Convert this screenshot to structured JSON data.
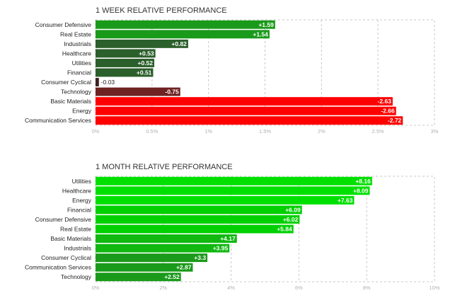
{
  "chart_data": [
    {
      "type": "bar",
      "orientation": "horizontal",
      "title": "1 WEEK RELATIVE PERFORMANCE",
      "categories": [
        "Consumer Defensive",
        "Real Estate",
        "Industrials",
        "Healthcare",
        "Utilities",
        "Financial",
        "Consumer Cyclical",
        "Technology",
        "Basic Materials",
        "Energy",
        "Communication Services"
      ],
      "values": [
        1.59,
        1.54,
        0.82,
        0.53,
        0.52,
        0.51,
        -0.03,
        -0.75,
        -2.63,
        -2.66,
        -2.72
      ],
      "value_labels": [
        "+1.59",
        "+1.54",
        "+0.82",
        "+0.53",
        "+0.52",
        "+0.51",
        "-0.03",
        "-0.75",
        "-2.63",
        "-2.66",
        "-2.72"
      ],
      "colors": [
        "#1a9a1a",
        "#1a9a1a",
        "#2b5f2b",
        "#2b5f2b",
        "#2b5f2b",
        "#2b5f2b",
        "#3a2020",
        "#6e2222",
        "#ff0000",
        "#ff0000",
        "#ff0000"
      ],
      "xlim": [
        0,
        3
      ],
      "ticks": [
        0,
        0.5,
        1,
        1.5,
        2,
        2.5,
        3
      ],
      "tick_labels": [
        "0%",
        "0.5%",
        "1%",
        "1.5%",
        "2%",
        "2.5%",
        "3%"
      ],
      "grid": true
    },
    {
      "type": "bar",
      "orientation": "horizontal",
      "title": "1 MONTH RELATIVE PERFORMANCE",
      "categories": [
        "Utilities",
        "Healthcare",
        "Energy",
        "Financial",
        "Consumer Defensive",
        "Real Estate",
        "Basic Materials",
        "Industrials",
        "Consumer Cyclical",
        "Communication Services",
        "Technology"
      ],
      "values": [
        8.16,
        8.09,
        7.63,
        6.09,
        6.02,
        5.84,
        4.17,
        3.95,
        3.3,
        2.87,
        2.52
      ],
      "value_labels": [
        "+8.16",
        "+8.09",
        "+7.63",
        "+6.09",
        "+6.02",
        "+5.84",
        "+4.17",
        "+3.95",
        "+3.3",
        "+2.87",
        "+2.52"
      ],
      "colors": [
        "#00e000",
        "#00e000",
        "#00e000",
        "#00d000",
        "#00d000",
        "#00d000",
        "#10b810",
        "#10b810",
        "#1a9a1a",
        "#1a9a1a",
        "#1a9a1a"
      ],
      "xlim": [
        0,
        10
      ],
      "ticks": [
        0,
        2,
        4,
        6,
        8,
        10
      ],
      "tick_labels": [
        "0%",
        "2%",
        "4%",
        "6%",
        "8%",
        "10%"
      ],
      "grid": true
    }
  ]
}
